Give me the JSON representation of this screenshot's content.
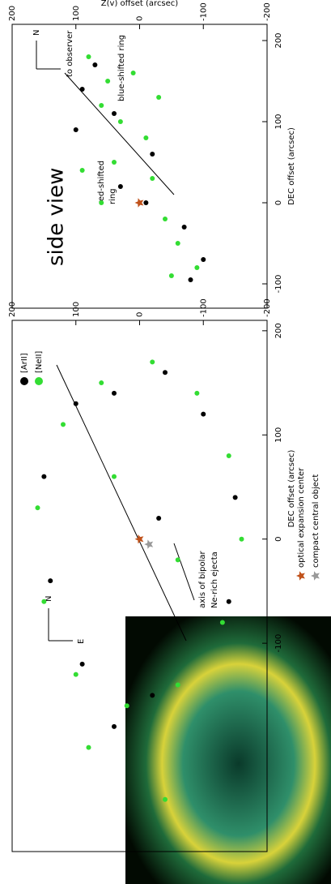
{
  "chart_data": [
    {
      "type": "scatter",
      "xlabel": "DEC offset (arcsec)",
      "xlim": [
        -300,
        210
      ],
      "xticks": [
        -100,
        0,
        100,
        200
      ],
      "ylim": [
        -200,
        200
      ],
      "yticks": [
        -200,
        -100,
        0,
        100,
        200
      ],
      "series": [
        {
          "name": "[ArII]",
          "color": "#000000",
          "x": [
            140,
            160,
            120,
            40,
            -60,
            -150,
            -120,
            -40,
            60,
            130,
            -180,
            20
          ],
          "values": [
            40,
            -40,
            -100,
            -150,
            -140,
            -20,
            90,
            140,
            150,
            100,
            40,
            -30
          ]
        },
        {
          "name": "[NeII]",
          "color": "#33dd33",
          "x": [
            150,
            170,
            140,
            80,
            0,
            -80,
            -140,
            -160,
            -130,
            -60,
            30,
            110,
            -20,
            60,
            -200,
            -250
          ],
          "values": [
            60,
            -20,
            -90,
            -140,
            -160,
            -130,
            -60,
            20,
            100,
            150,
            160,
            120,
            -60,
            40,
            80,
            -40
          ]
        }
      ],
      "markers": [
        {
          "name": "optical expansion center",
          "color": "#c0521b",
          "x": 0,
          "y": 0
        },
        {
          "name": "compact central object",
          "color": "#999999",
          "x": -5,
          "y": -15
        }
      ],
      "annotations": [
        "axis of bipolar",
        "Ne-rich ejecta",
        "N",
        "E"
      ]
    },
    {
      "type": "scatter",
      "title": "side view",
      "xlabel": "DEC offset (arcsec)",
      "ylabel": "Z(v) offset (arcsec)",
      "xlim": [
        -130,
        220
      ],
      "xticks": [
        -100,
        0,
        100,
        200
      ],
      "ylim": [
        -200,
        200
      ],
      "yticks": [
        -200,
        -100,
        0,
        100,
        200
      ],
      "series": [
        {
          "color": "#000000",
          "x": [
            170,
            140,
            110,
            60,
            20,
            -30,
            -70,
            -95,
            90,
            0
          ],
          "values": [
            70,
            90,
            40,
            -20,
            30,
            -70,
            -100,
            -80,
            100,
            -10
          ]
        },
        {
          "color": "#33dd33",
          "x": [
            180,
            150,
            120,
            100,
            80,
            50,
            30,
            0,
            -20,
            -50,
            -80,
            -90,
            40,
            130,
            160
          ],
          "values": [
            80,
            50,
            60,
            30,
            -10,
            40,
            -20,
            60,
            -40,
            -60,
            -90,
            -50,
            90,
            -30,
            10
          ]
        }
      ],
      "markers": [
        {
          "color": "#c0521b",
          "x": 0,
          "y": 0
        }
      ],
      "annotations": [
        "red-shifted",
        "ring",
        "blue-shifted ring",
        "N",
        "to observer"
      ]
    }
  ]
}
